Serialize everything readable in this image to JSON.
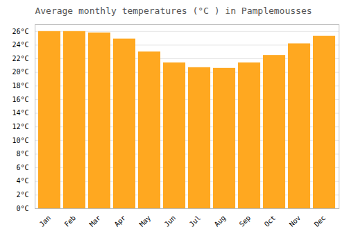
{
  "chart_data": {
    "type": "bar",
    "title": "Average monthly temperatures (°C ) in Pamplemousses",
    "categories": [
      "Jan",
      "Feb",
      "Mar",
      "Apr",
      "May",
      "Jun",
      "Jul",
      "Aug",
      "Sep",
      "Oct",
      "Nov",
      "Dec"
    ],
    "values": [
      26.0,
      26.0,
      25.8,
      24.9,
      23.0,
      21.4,
      20.7,
      20.6,
      21.4,
      22.5,
      24.2,
      25.3
    ],
    "color": "#FFA820",
    "ylim": [
      0,
      27
    ],
    "yticks": [
      {
        "value": 0,
        "label": "0°C"
      },
      {
        "value": 2,
        "label": "2°C"
      },
      {
        "value": 4,
        "label": "4°C"
      },
      {
        "value": 6,
        "label": "6°C"
      },
      {
        "value": 8,
        "label": "8°C"
      },
      {
        "value": 10,
        "label": "10°C"
      },
      {
        "value": 12,
        "label": "12°C"
      },
      {
        "value": 14,
        "label": "14°C"
      },
      {
        "value": 16,
        "label": "16°C"
      },
      {
        "value": 18,
        "label": "18°C"
      },
      {
        "value": 20,
        "label": "20°C"
      },
      {
        "value": 22,
        "label": "22°C"
      },
      {
        "value": 24,
        "label": "24°C"
      },
      {
        "value": 26,
        "label": "26°C"
      }
    ],
    "grid": true
  }
}
